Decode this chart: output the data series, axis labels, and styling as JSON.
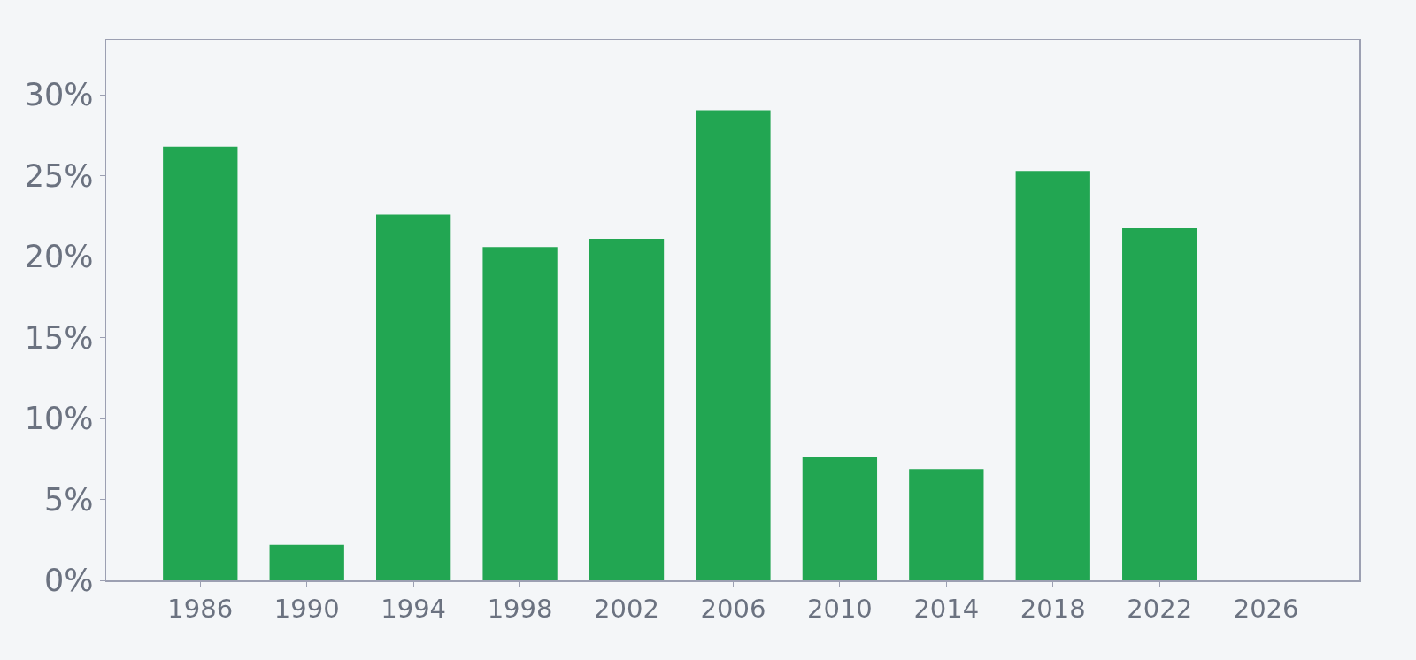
{
  "chart_data": {
    "type": "bar",
    "x": [
      1986,
      1990,
      1994,
      1998,
      2002,
      2006,
      2010,
      2014,
      2018,
      2022
    ],
    "values": [
      26.8,
      2.2,
      22.6,
      20.6,
      21.1,
      29.05,
      7.65,
      6.87,
      25.3,
      21.76
    ],
    "color": "#22a652",
    "xlim": [
      1982.47,
      2029.5
    ],
    "xticks": [
      1986,
      1990,
      1994,
      1998,
      2002,
      2006,
      2010,
      2014,
      2018,
      2022,
      2026
    ],
    "ylim": [
      0,
      33.4
    ],
    "yticks": [
      {
        "value": 0,
        "label": "0%"
      },
      {
        "value": 5,
        "label": "5%"
      },
      {
        "value": 10,
        "label": "10%"
      },
      {
        "value": 15,
        "label": "15%"
      },
      {
        "value": 20,
        "label": "20%"
      },
      {
        "value": 25,
        "label": "25%"
      },
      {
        "value": 30,
        "label": "30%"
      }
    ]
  }
}
